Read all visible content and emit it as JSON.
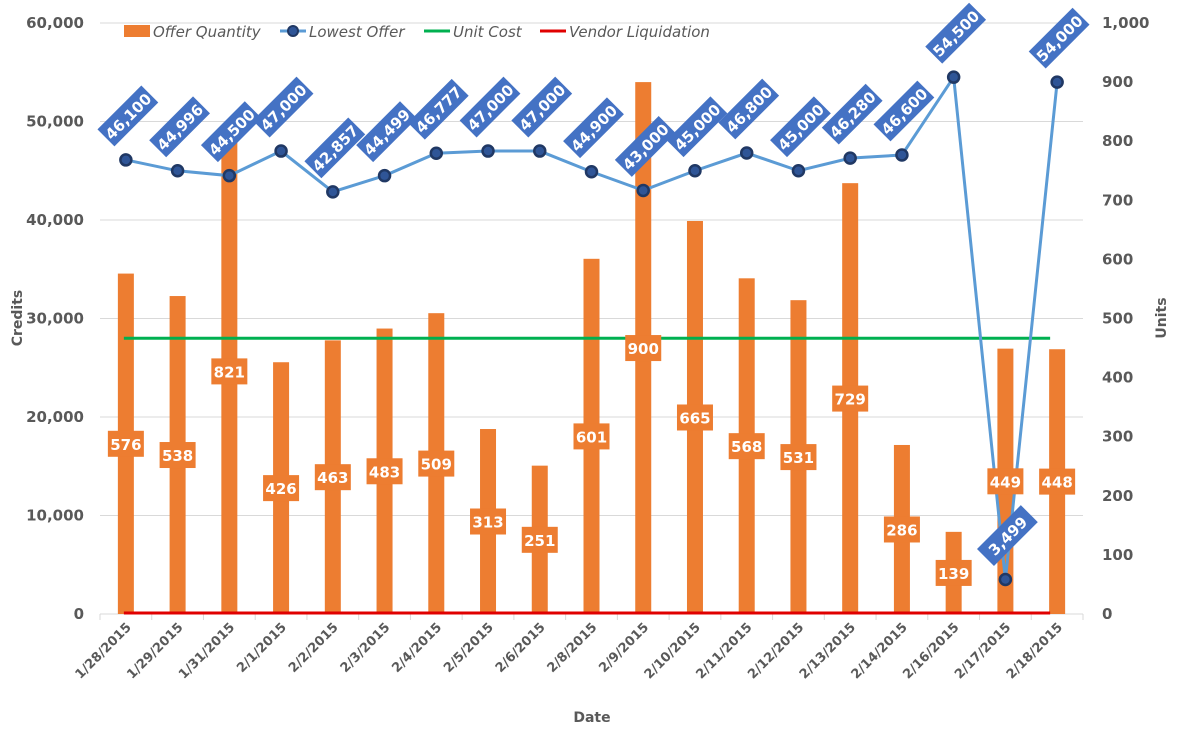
{
  "chart_data": {
    "type": "bar",
    "title": "",
    "xlabel": "Date",
    "ylabel": "Credits",
    "y2label": "Units",
    "ylim": [
      0,
      60000
    ],
    "y2lim": [
      0,
      1000
    ],
    "yticks": [
      "0",
      "10,000",
      "20,000",
      "30,000",
      "40,000",
      "50,000",
      "60,000"
    ],
    "y2ticks": [
      "0",
      "100",
      "200",
      "300",
      "400",
      "500",
      "600",
      "700",
      "800",
      "900",
      "1,000"
    ],
    "grid": true,
    "legend_position": "top",
    "categories": [
      "1/28/2015",
      "1/29/2015",
      "1/31/2015",
      "2/1/2015",
      "2/2/2015",
      "2/3/2015",
      "2/4/2015",
      "2/5/2015",
      "2/6/2015",
      "2/8/2015",
      "2/9/2015",
      "2/10/2015",
      "2/11/2015",
      "2/12/2015",
      "2/13/2015",
      "2/14/2015",
      "2/16/2015",
      "2/17/2015",
      "2/18/2015"
    ],
    "series": [
      {
        "name": "Offer Quantity",
        "type": "bar",
        "axis": "right",
        "color": "#ED7D31",
        "values": [
          576,
          538,
          821,
          426,
          463,
          483,
          509,
          313,
          251,
          601,
          900,
          665,
          568,
          531,
          729,
          286,
          139,
          449,
          448
        ],
        "labels": [
          "576",
          "538",
          "821",
          "426",
          "463",
          "483",
          "509",
          "313",
          "251",
          "601",
          "900",
          "665",
          "568",
          "531",
          "729",
          "286",
          "139",
          "449",
          "448"
        ]
      },
      {
        "name": "Lowest Offer",
        "type": "line",
        "axis": "left",
        "color": "#5B9BD5",
        "marker_color": "#203864",
        "label_color": "#4472C4",
        "values": [
          46100,
          44996,
          44500,
          47000,
          42857,
          44499,
          46777,
          47000,
          47000,
          44900,
          43000,
          45000,
          46800,
          45000,
          46280,
          46600,
          54500,
          3499,
          54000
        ],
        "labels": [
          "46,100",
          "44,996",
          "44,500",
          "47,000",
          "42,857",
          "44,499",
          "46,777",
          "47,000",
          "47,000",
          "44,900",
          "43,000",
          "45,000",
          "46,800",
          "45,000",
          "46,280",
          "46,600",
          "54,500",
          "3,499",
          "54,000"
        ]
      },
      {
        "name": "Unit Cost",
        "type": "line",
        "axis": "left",
        "color": "#00B050",
        "values": [
          28000,
          28000,
          28000,
          28000,
          28000,
          28000,
          28000,
          28000,
          28000,
          28000,
          28000,
          28000,
          28000,
          28000,
          28000,
          28000,
          28000,
          28000,
          28000
        ]
      },
      {
        "name": "Vendor Liquidation",
        "type": "line",
        "axis": "left",
        "color": "#E00000",
        "values": [
          0,
          0,
          0,
          0,
          0,
          0,
          0,
          0,
          0,
          0,
          0,
          0,
          0,
          0,
          0,
          0,
          0,
          0,
          0
        ]
      }
    ]
  }
}
